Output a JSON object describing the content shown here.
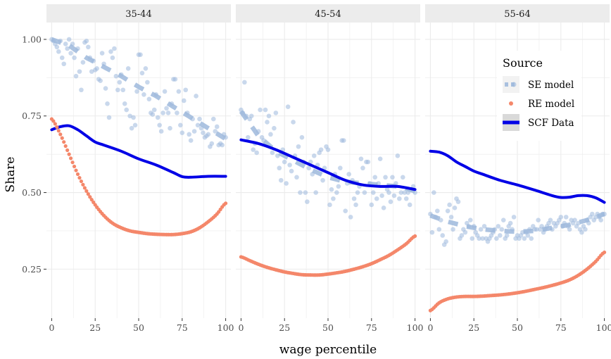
{
  "chart_data": {
    "type": "line",
    "facets": [
      "35-44",
      "45-54",
      "55-64"
    ],
    "xlabel": "wage percentile",
    "ylabel": "Share",
    "xlim": [
      -3,
      103
    ],
    "ylim": [
      0.09,
      1.055
    ],
    "x_ticks": [
      0,
      25,
      50,
      75,
      100
    ],
    "x_tick_labels": [
      "0",
      "25",
      "50",
      "75",
      "100"
    ],
    "y_ticks": [
      0.25,
      0.5,
      0.75,
      1.0
    ],
    "y_tick_labels": [
      "0.25",
      "0.50",
      "0.75",
      "1.00"
    ],
    "grid": true,
    "legend": {
      "title": "Source",
      "placement": "right (inside 55-64 panel)",
      "entries": [
        {
          "label": "SE model",
          "color": "#9db8dc"
        },
        {
          "label": "RE model",
          "color": "#f4876a"
        },
        {
          "label": "SCF Data",
          "color": "#0000e6"
        }
      ]
    },
    "colors": {
      "se_model": "#9db8dc",
      "re_model": "#f4876a",
      "scf_data": "#0000e6",
      "strip_bg": "#ececec",
      "grid": "#ebebeb"
    },
    "panels": [
      {
        "facet": "35-44",
        "scf_data": {
          "x": [
            0,
            5,
            10,
            15,
            20,
            25,
            30,
            40,
            50,
            60,
            70,
            75,
            80,
            90,
            100
          ],
          "y": [
            0.705,
            0.715,
            0.718,
            0.705,
            0.685,
            0.665,
            0.655,
            0.635,
            0.61,
            0.59,
            0.565,
            0.552,
            0.55,
            0.553,
            0.553
          ]
        },
        "re_model": {
          "x": [
            0,
            5,
            10,
            15,
            20,
            25,
            30,
            35,
            40,
            45,
            50,
            55,
            60,
            65,
            70,
            75,
            80,
            85,
            90,
            95,
            100
          ],
          "y": [
            0.74,
            0.69,
            0.625,
            0.56,
            0.505,
            0.46,
            0.425,
            0.4,
            0.385,
            0.375,
            0.37,
            0.366,
            0.364,
            0.363,
            0.363,
            0.366,
            0.372,
            0.385,
            0.405,
            0.43,
            0.465
          ]
        },
        "se_model_fit": {
          "x": [
            0,
            10,
            20,
            30,
            40,
            50,
            60,
            70,
            80,
            90,
            100
          ],
          "y": [
            1.0,
            0.98,
            0.94,
            0.91,
            0.88,
            0.845,
            0.815,
            0.78,
            0.745,
            0.71,
            0.675
          ]
        },
        "se_model_points": {
          "x": [
            0,
            1,
            2,
            3,
            4,
            5,
            6,
            7,
            8,
            9,
            10,
            11,
            12,
            13,
            14,
            15,
            16,
            17,
            18,
            19,
            20,
            21,
            22,
            23,
            24,
            25,
            26,
            27,
            28,
            29,
            30,
            31,
            32,
            33,
            34,
            35,
            36,
            37,
            38,
            39,
            40,
            41,
            42,
            43,
            44,
            45,
            46,
            47,
            48,
            49,
            50,
            51,
            52,
            53,
            54,
            55,
            56,
            57,
            58,
            59,
            60,
            61,
            62,
            63,
            64,
            65,
            66,
            67,
            68,
            69,
            70,
            71,
            72,
            73,
            74,
            75,
            76,
            77,
            78,
            79,
            80,
            81,
            82,
            83,
            84,
            85,
            86,
            87,
            88,
            89,
            90,
            91,
            92,
            93,
            94,
            95,
            96,
            97,
            98,
            99,
            100
          ],
          "y": [
            1.0,
            0.995,
            0.985,
            0.975,
            0.96,
            0.995,
            0.94,
            0.92,
            0.985,
            0.97,
            1.0,
            0.955,
            0.985,
            0.94,
            0.88,
            0.97,
            0.895,
            0.835,
            0.925,
            0.99,
            0.995,
            0.975,
            0.94,
            0.895,
            0.93,
            0.9,
            0.905,
            0.87,
            0.865,
            0.955,
            0.92,
            0.84,
            0.79,
            0.745,
            0.96,
            0.94,
            0.97,
            0.88,
            0.835,
            0.86,
            0.885,
            0.835,
            0.79,
            0.77,
            0.905,
            0.75,
            0.71,
            0.745,
            0.72,
            0.83,
            0.95,
            0.95,
            0.89,
            0.82,
            0.905,
            0.86,
            0.805,
            0.76,
            0.755,
            0.77,
            0.82,
            0.745,
            0.72,
            0.7,
            0.76,
            0.83,
            0.775,
            0.76,
            0.71,
            0.79,
            0.87,
            0.87,
            0.76,
            0.83,
            0.72,
            0.695,
            0.8,
            0.835,
            0.76,
            0.69,
            0.67,
            0.74,
            0.7,
            0.815,
            0.72,
            0.74,
            0.71,
            0.695,
            0.68,
            0.685,
            0.69,
            0.65,
            0.66,
            0.74,
            0.7,
            0.715,
            0.655,
            0.66,
            0.655,
            0.69,
            0.68
          ]
        }
      },
      {
        "facet": "45-54",
        "scf_data": {
          "x": [
            0,
            10,
            20,
            30,
            40,
            50,
            60,
            70,
            80,
            90,
            100
          ],
          "y": [
            0.672,
            0.66,
            0.64,
            0.615,
            0.59,
            0.565,
            0.54,
            0.525,
            0.52,
            0.52,
            0.51
          ]
        },
        "re_model": {
          "x": [
            0,
            5,
            10,
            15,
            20,
            25,
            30,
            35,
            40,
            45,
            50,
            55,
            60,
            65,
            70,
            75,
            80,
            85,
            90,
            95,
            100
          ],
          "y": [
            0.29,
            0.278,
            0.266,
            0.256,
            0.248,
            0.241,
            0.236,
            0.232,
            0.231,
            0.231,
            0.234,
            0.238,
            0.243,
            0.25,
            0.258,
            0.268,
            0.281,
            0.295,
            0.313,
            0.333,
            0.358
          ]
        },
        "se_model_fit": {
          "x": [
            0,
            10,
            20,
            30,
            40,
            50,
            60,
            70,
            80,
            90,
            100
          ],
          "y": [
            0.765,
            0.685,
            0.635,
            0.605,
            0.575,
            0.55,
            0.535,
            0.53,
            0.525,
            0.52,
            0.505
          ]
        },
        "se_model_points": {
          "x": [
            0,
            1,
            2,
            3,
            4,
            5,
            6,
            7,
            8,
            9,
            10,
            11,
            12,
            13,
            14,
            15,
            16,
            17,
            18,
            19,
            20,
            21,
            22,
            23,
            24,
            25,
            26,
            27,
            28,
            29,
            30,
            31,
            32,
            33,
            34,
            35,
            36,
            37,
            38,
            39,
            40,
            41,
            42,
            43,
            44,
            45,
            46,
            47,
            48,
            49,
            50,
            51,
            52,
            53,
            54,
            55,
            56,
            57,
            58,
            59,
            60,
            61,
            62,
            63,
            64,
            65,
            66,
            67,
            68,
            69,
            70,
            71,
            72,
            73,
            74,
            75,
            76,
            77,
            78,
            79,
            80,
            81,
            82,
            83,
            84,
            85,
            86,
            87,
            88,
            89,
            90,
            91,
            92,
            93,
            94,
            95,
            96,
            97,
            98,
            99,
            100
          ],
          "y": [
            0.77,
            0.76,
            0.86,
            0.75,
            0.68,
            0.74,
            0.75,
            0.64,
            0.66,
            0.63,
            0.7,
            0.77,
            0.68,
            0.67,
            0.77,
            0.73,
            0.75,
            0.69,
            0.63,
            0.71,
            0.76,
            0.62,
            0.58,
            0.54,
            0.64,
            0.6,
            0.53,
            0.78,
            0.59,
            0.57,
            0.73,
            0.62,
            0.55,
            0.65,
            0.5,
            0.68,
            0.6,
            0.5,
            0.47,
            0.58,
            0.6,
            0.56,
            0.62,
            0.5,
            0.59,
            0.63,
            0.64,
            0.54,
            0.58,
            0.65,
            0.64,
            0.46,
            0.51,
            0.48,
            0.56,
            0.5,
            0.52,
            0.58,
            0.67,
            0.67,
            0.44,
            0.53,
            0.56,
            0.42,
            0.54,
            0.48,
            0.46,
            0.5,
            0.52,
            0.61,
            0.58,
            0.5,
            0.6,
            0.6,
            0.53,
            0.46,
            0.5,
            0.55,
            0.48,
            0.53,
            0.61,
            0.49,
            0.45,
            0.55,
            0.51,
            0.5,
            0.47,
            0.55,
            0.49,
            0.53,
            0.62,
            0.48,
            0.5,
            0.55,
            0.5,
            0.48,
            0.5,
            0.46,
            0.51,
            0.52,
            0.5
          ]
        }
      },
      {
        "facet": "55-64",
        "scf_data": {
          "x": [
            0,
            5,
            10,
            15,
            20,
            25,
            30,
            40,
            50,
            60,
            70,
            75,
            80,
            85,
            90,
            95,
            100
          ],
          "y": [
            0.635,
            0.632,
            0.62,
            0.6,
            0.585,
            0.57,
            0.56,
            0.54,
            0.525,
            0.508,
            0.49,
            0.484,
            0.485,
            0.49,
            0.49,
            0.483,
            0.468
          ]
        },
        "re_model": {
          "x": [
            0,
            5,
            10,
            15,
            20,
            25,
            30,
            35,
            40,
            45,
            50,
            55,
            60,
            65,
            70,
            75,
            80,
            85,
            90,
            95,
            100
          ],
          "y": [
            0.115,
            0.14,
            0.153,
            0.159,
            0.161,
            0.161,
            0.162,
            0.164,
            0.166,
            0.169,
            0.173,
            0.178,
            0.184,
            0.19,
            0.197,
            0.205,
            0.215,
            0.23,
            0.25,
            0.275,
            0.305
          ]
        },
        "se_model_fit": {
          "x": [
            0,
            10,
            20,
            30,
            40,
            50,
            60,
            70,
            80,
            90,
            100
          ],
          "y": [
            0.425,
            0.405,
            0.39,
            0.38,
            0.375,
            0.372,
            0.375,
            0.385,
            0.395,
            0.41,
            0.43
          ]
        },
        "se_model_points": {
          "x": [
            0,
            1,
            2,
            3,
            4,
            5,
            6,
            7,
            8,
            9,
            10,
            11,
            12,
            13,
            14,
            15,
            16,
            17,
            18,
            19,
            20,
            21,
            22,
            23,
            24,
            25,
            26,
            27,
            28,
            29,
            30,
            31,
            32,
            33,
            34,
            35,
            36,
            37,
            38,
            39,
            40,
            41,
            42,
            43,
            44,
            45,
            46,
            47,
            48,
            49,
            50,
            51,
            52,
            53,
            54,
            55,
            56,
            57,
            58,
            59,
            60,
            61,
            62,
            63,
            64,
            65,
            66,
            67,
            68,
            69,
            70,
            71,
            72,
            73,
            74,
            75,
            76,
            77,
            78,
            79,
            80,
            81,
            82,
            83,
            84,
            85,
            86,
            87,
            88,
            89,
            90,
            91,
            92,
            93,
            94,
            95,
            96,
            97,
            98,
            99,
            100
          ],
          "y": [
            0.43,
            0.37,
            0.5,
            0.42,
            0.44,
            0.38,
            0.41,
            0.36,
            0.33,
            0.34,
            0.44,
            0.46,
            0.42,
            0.38,
            0.45,
            0.48,
            0.47,
            0.35,
            0.36,
            0.38,
            0.37,
            0.4,
            0.39,
            0.41,
            0.35,
            0.39,
            0.37,
            0.36,
            0.35,
            0.38,
            0.35,
            0.39,
            0.35,
            0.34,
            0.35,
            0.36,
            0.37,
            0.38,
            0.35,
            0.39,
            0.36,
            0.38,
            0.41,
            0.35,
            0.36,
            0.39,
            0.4,
            0.38,
            0.42,
            0.35,
            0.36,
            0.35,
            0.36,
            0.37,
            0.35,
            0.37,
            0.36,
            0.38,
            0.35,
            0.39,
            0.38,
            0.38,
            0.41,
            0.38,
            0.39,
            0.37,
            0.38,
            0.39,
            0.4,
            0.41,
            0.38,
            0.4,
            0.39,
            0.4,
            0.41,
            0.42,
            0.39,
            0.4,
            0.42,
            0.39,
            0.38,
            0.41,
            0.4,
            0.41,
            0.39,
            0.4,
            0.38,
            0.37,
            0.39,
            0.38,
            0.41,
            0.4,
            0.42,
            0.43,
            0.41,
            0.42,
            0.43,
            0.42,
            0.41,
            0.43,
            0.43
          ]
        }
      }
    ]
  }
}
